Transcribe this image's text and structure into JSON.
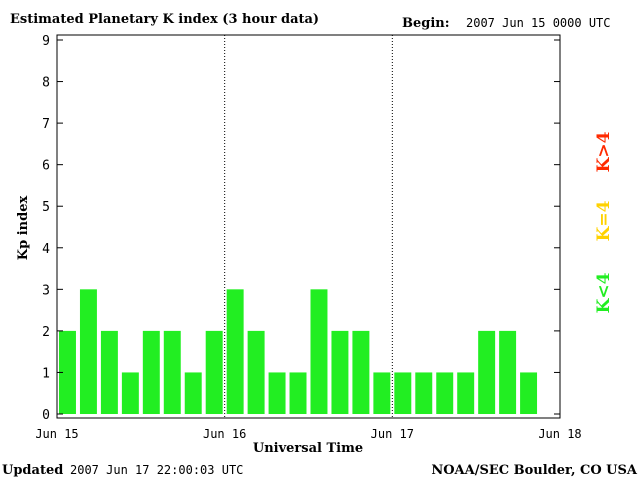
{
  "header": {
    "title": "Estimated Planetary K index (3 hour data)",
    "begin_label": "Begin:",
    "begin_value": "2007 Jun 15 0000 UTC"
  },
  "footer": {
    "updated_label": "Updated",
    "updated_value": "2007 Jun 17 22:00:03 UTC",
    "source": "NOAA/SEC Boulder, CO USA"
  },
  "legend": {
    "high": {
      "label": "K>4",
      "color": "#ff2a00"
    },
    "mid": {
      "label": "K=4",
      "color": "#ffd200"
    },
    "low": {
      "label": "K<4",
      "color": "#22ee22"
    }
  },
  "chart_data": {
    "type": "bar",
    "title": "Estimated Planetary K index (3 hour data)",
    "xlabel": "Universal Time",
    "ylabel": "Kp index",
    "ylim": [
      0,
      9
    ],
    "yticks": [
      "0",
      "1",
      "2",
      "3",
      "4",
      "5",
      "6",
      "7",
      "8",
      "9"
    ],
    "xticks": [
      "Jun 15",
      "Jun 16",
      "Jun 17",
      "Jun 18"
    ],
    "interval_hours": 3,
    "day_separators": "dotted",
    "values": [
      2,
      3,
      2,
      1,
      2,
      2,
      1,
      2,
      3,
      2,
      1,
      1,
      3,
      2,
      2,
      1,
      1,
      1,
      1,
      1,
      2,
      2,
      1
    ],
    "colors": {
      "below4": "#22ee22",
      "eq4": "#ffd200",
      "above4": "#ff2a00"
    }
  }
}
